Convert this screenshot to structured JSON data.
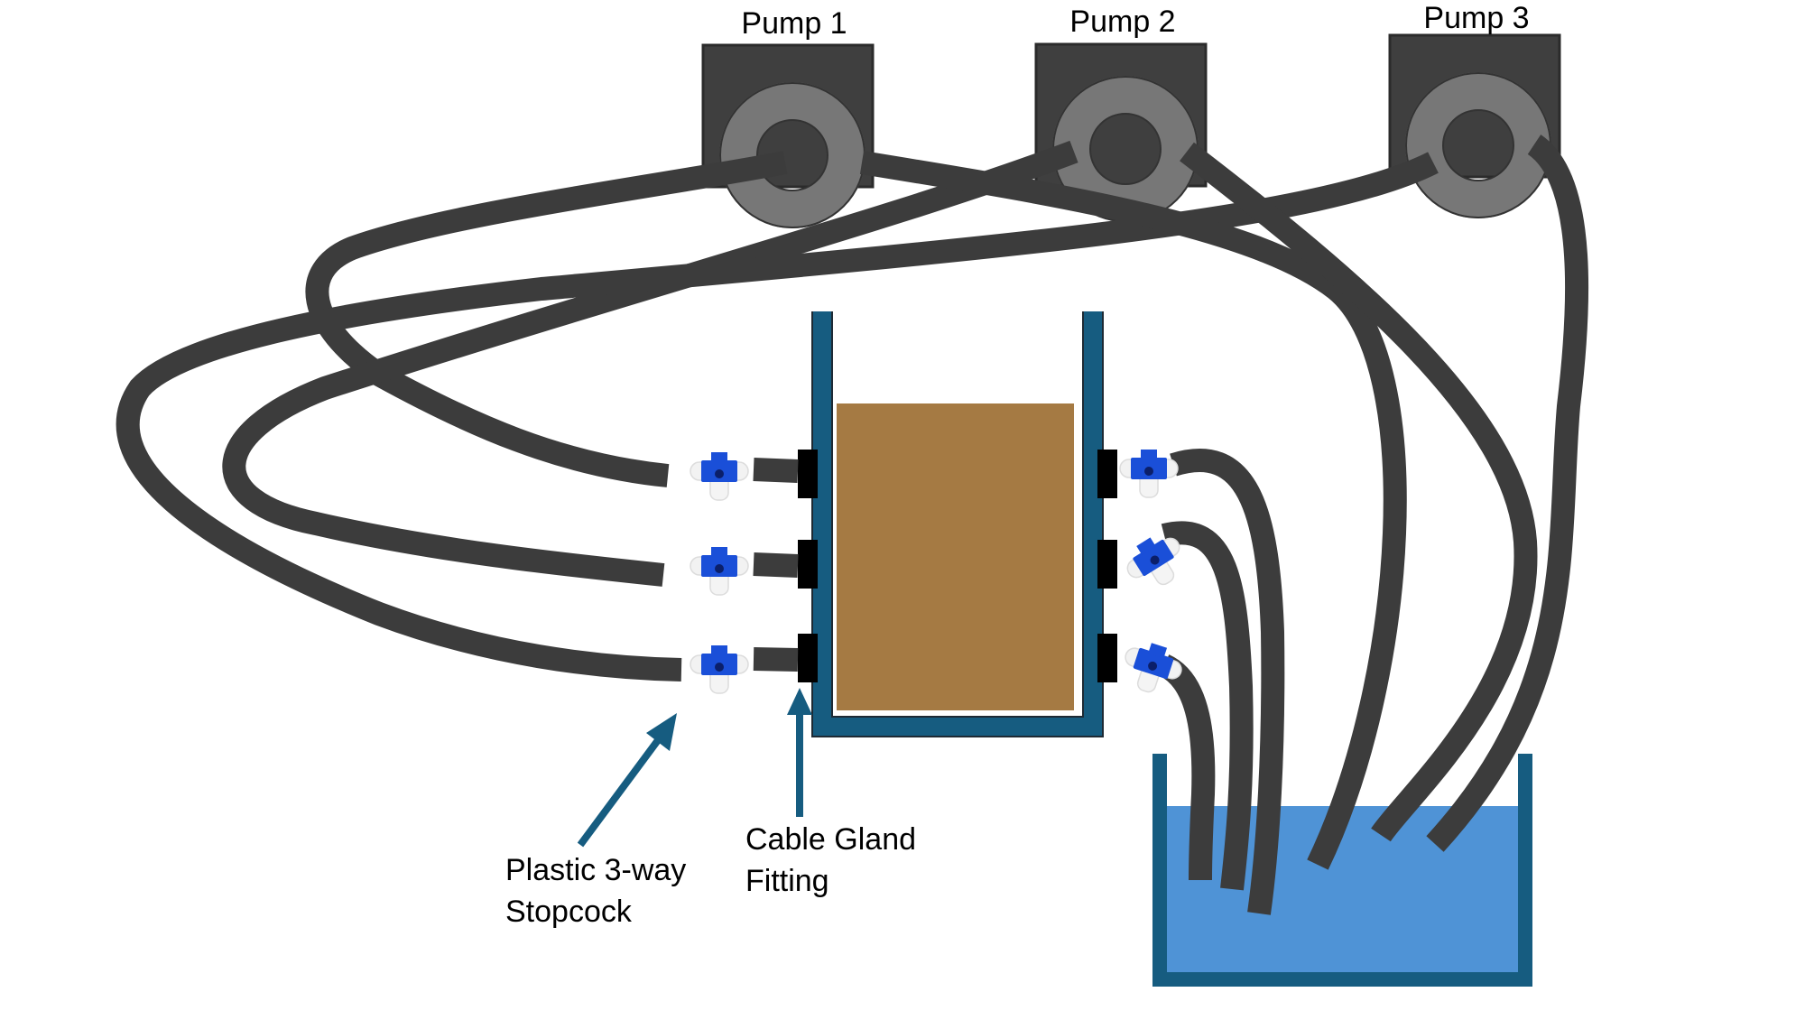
{
  "pumps": [
    {
      "label": "Pump 1"
    },
    {
      "label": "Pump 2"
    },
    {
      "label": "Pump 3"
    }
  ],
  "annotations": {
    "stopcock_line1": "Plastic 3-way",
    "stopcock_line2": "Stopcock",
    "gland_line1": "Cable Gland",
    "gland_line2": "Fitting"
  },
  "colors": {
    "tubing": "#3c3c3c",
    "pump_body": "#3f3f3f",
    "pump_ring": "#777777",
    "column_wall": "#165c80",
    "soil": "#a57a43",
    "water": "#4f93d6",
    "stopcock_handle": "#1a4fd8",
    "arrow": "#165c80"
  }
}
